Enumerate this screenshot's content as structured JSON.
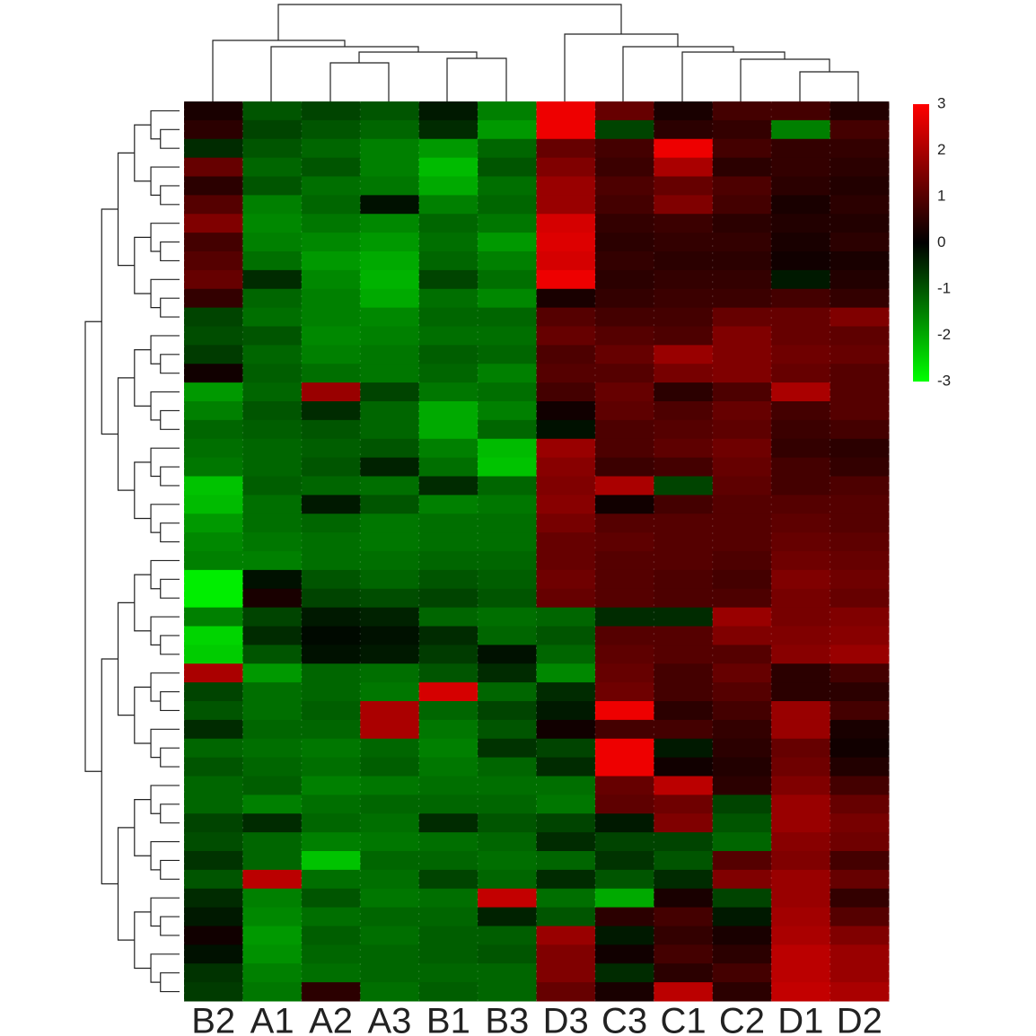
{
  "chart_data": {
    "type": "heatmap",
    "categories": [
      "B2",
      "A1",
      "A2",
      "A3",
      "B1",
      "B3",
      "D3",
      "C3",
      "C1",
      "C2",
      "D1",
      "D2"
    ],
    "zlim": [
      -3,
      3
    ],
    "colorbar_ticks": [
      3,
      2,
      1,
      0,
      -1,
      -2,
      -3
    ],
    "colors": {
      "low": "#00ff00",
      "mid": "#000000",
      "high": "#ff0000"
    },
    "z": [
      [
        0.3,
        -1,
        -0.8,
        -1,
        -0.3,
        -1.5,
        2.8,
        1.2,
        0.3,
        0.8,
        0.8,
        0.4
      ],
      [
        0.5,
        -0.8,
        -1,
        -1.2,
        -0.5,
        -1.8,
        2.8,
        -0.8,
        0.5,
        0.6,
        -1.5,
        0.8
      ],
      [
        -0.5,
        -1,
        -1.2,
        -1.5,
        -1.8,
        -1.2,
        1.2,
        0.8,
        2.8,
        0.8,
        0.6,
        0.6
      ],
      [
        1.2,
        -1.2,
        -1,
        -1.5,
        -2.2,
        -1,
        1.5,
        0.7,
        2,
        0.5,
        0.6,
        0.5
      ],
      [
        0.5,
        -1,
        -1.3,
        -1.4,
        -2,
        -1.3,
        1.8,
        0.9,
        1.2,
        0.9,
        0.5,
        0.4
      ],
      [
        1,
        -1.5,
        -1.2,
        -0.2,
        -1.5,
        -1.2,
        1.8,
        0.8,
        1.5,
        0.8,
        0.3,
        0.5
      ],
      [
        1.5,
        -1.6,
        -1.4,
        -1.6,
        -1.2,
        -1.4,
        2.5,
        0.6,
        0.7,
        0.5,
        0.4,
        0.4
      ],
      [
        0.8,
        -1.5,
        -1.6,
        -1.8,
        -1.3,
        -1.8,
        2.6,
        0.5,
        0.6,
        0.6,
        0.3,
        0.5
      ],
      [
        1,
        -1.3,
        -1.8,
        -2,
        -1.2,
        -1.5,
        2.5,
        0.6,
        0.5,
        0.5,
        0.2,
        0.3
      ],
      [
        1.2,
        -0.5,
        -1.6,
        -2.1,
        -0.8,
        -1.3,
        2.8,
        0.5,
        0.6,
        0.6,
        -0.3,
        0.4
      ],
      [
        0.6,
        -1.2,
        -1.5,
        -2,
        -1.3,
        -1.6,
        0.3,
        0.6,
        0.7,
        0.7,
        0.8,
        0.6
      ],
      [
        -0.8,
        -1.3,
        -1.5,
        -1.6,
        -1.2,
        -1.2,
        1,
        0.8,
        0.8,
        1.2,
        1.2,
        1.5
      ],
      [
        -0.9,
        -1,
        -1.6,
        -1.5,
        -1.3,
        -1.3,
        1.2,
        1,
        0.9,
        1.5,
        1.2,
        1.1
      ],
      [
        -0.7,
        -1.2,
        -1.5,
        -1.4,
        -1.1,
        -1.2,
        0.9,
        1.2,
        1.8,
        1.5,
        1.3,
        1.2
      ],
      [
        0.2,
        -1.1,
        -1.3,
        -1.4,
        -1.2,
        -1.5,
        1,
        1,
        1.4,
        1.5,
        1.2,
        1
      ],
      [
        -1.8,
        -1.2,
        1.8,
        -0.8,
        -1.4,
        -1.3,
        0.8,
        1.2,
        0.5,
        0.9,
        2,
        1
      ],
      [
        -1.5,
        -1,
        -0.5,
        -1.2,
        -2,
        -1.5,
        0.2,
        1.1,
        0.9,
        1.2,
        0.8,
        1
      ],
      [
        -1.2,
        -1.1,
        -1,
        -1.2,
        -2,
        -1.2,
        -0.2,
        0.9,
        1,
        1.1,
        0.7,
        0.8
      ],
      [
        -1.3,
        -1.2,
        -1.1,
        -1,
        -1.5,
        -2.2,
        1.8,
        0.9,
        1.1,
        1.3,
        0.6,
        0.5
      ],
      [
        -1.4,
        -1.2,
        -1,
        -0.4,
        -1.3,
        -2.3,
        1.6,
        0.7,
        0.8,
        1.2,
        0.8,
        0.6
      ],
      [
        -2.3,
        -1.1,
        -1.2,
        -1.3,
        -0.5,
        -1.2,
        1.5,
        2,
        -0.8,
        1.1,
        0.8,
        0.9
      ],
      [
        -2.2,
        -1.3,
        -0.3,
        -1,
        -1.5,
        -1.4,
        1.6,
        0.2,
        0.8,
        1,
        1,
        1
      ],
      [
        -1.8,
        -1.3,
        -1.2,
        -1.4,
        -1.3,
        -1.3,
        1.4,
        1,
        1,
        1,
        1.1,
        1
      ],
      [
        -1.6,
        -1.4,
        -1.3,
        -1.4,
        -1.3,
        -1.3,
        1.2,
        1.1,
        1,
        1,
        1.2,
        1.1
      ],
      [
        -1.5,
        -1.5,
        -1.3,
        -1.3,
        -1.2,
        -1.2,
        1.2,
        1,
        1,
        0.9,
        1.3,
        1.2
      ],
      [
        -2.8,
        -0.2,
        -1,
        -1.2,
        -1,
        -1.1,
        1.3,
        1,
        0.9,
        0.8,
        1.5,
        1.3
      ],
      [
        -2.8,
        0.3,
        -0.8,
        -0.9,
        -0.8,
        -1,
        1.2,
        1,
        0.9,
        0.9,
        1.4,
        1.2
      ],
      [
        -1.5,
        -0.8,
        -0.3,
        -0.4,
        -1.2,
        -1.3,
        -1.2,
        -0.5,
        -0.5,
        1.8,
        1.4,
        1.5
      ],
      [
        -2.5,
        -0.5,
        -0.1,
        -0.2,
        -0.5,
        -1.2,
        -1,
        1,
        1,
        1.5,
        1.5,
        1.6
      ],
      [
        -2.4,
        -1,
        -0.2,
        -0.3,
        -0.7,
        -0.2,
        -1.2,
        1.1,
        1,
        1,
        1.6,
        1.8
      ],
      [
        2,
        -1.8,
        -1.2,
        -1.3,
        -1,
        -0.5,
        -1.6,
        1.2,
        0.8,
        1.2,
        0.5,
        0.8
      ],
      [
        -0.8,
        -1.3,
        -1.2,
        -1.4,
        2.5,
        -1.2,
        -0.5,
        1.3,
        0.8,
        1,
        0.5,
        0.5
      ],
      [
        -1,
        -1.3,
        -1.1,
        2,
        -1.2,
        -0.8,
        -0.3,
        2.8,
        0.5,
        0.8,
        1.8,
        0.8
      ],
      [
        -0.5,
        -1.2,
        -1.2,
        2,
        -1.4,
        -1,
        0.2,
        0.8,
        0.8,
        0.6,
        1.8,
        0.3
      ],
      [
        -1.2,
        -1.3,
        -1.4,
        -1.2,
        -1.5,
        -0.6,
        -0.8,
        2.8,
        -0.3,
        0.5,
        1.2,
        0.2
      ],
      [
        -1,
        -1.2,
        -1.3,
        -1.1,
        -1.4,
        -1.2,
        -0.5,
        2.8,
        0.2,
        0.4,
        1.3,
        0.4
      ],
      [
        -1.2,
        -1.1,
        -1.5,
        -1.4,
        -1.3,
        -1.3,
        -1.3,
        1.2,
        2.2,
        0.5,
        1.5,
        0.8
      ],
      [
        -1.2,
        -1.5,
        -1.3,
        -1.2,
        -1.2,
        -1.2,
        -1.4,
        1.1,
        1.3,
        -0.8,
        1.8,
        1.2
      ],
      [
        -0.8,
        -0.5,
        -1.2,
        -1.3,
        -0.5,
        -1,
        -0.8,
        -0.3,
        1.5,
        -1,
        1.8,
        1.4
      ],
      [
        -0.9,
        -1.2,
        -1.5,
        -1.4,
        -1.3,
        -1.2,
        -0.5,
        -0.8,
        -0.8,
        -1.2,
        1.6,
        1.3
      ],
      [
        -0.6,
        -1.2,
        -2.3,
        -1.2,
        -1.2,
        -1.3,
        -1.2,
        -0.6,
        -1,
        1,
        1.5,
        0.8
      ],
      [
        -1,
        2.2,
        -1.3,
        -1.3,
        -0.8,
        -1.2,
        -0.5,
        -1,
        -0.5,
        1.5,
        1.8,
        1.2
      ],
      [
        -0.5,
        -1.5,
        -1,
        -1.4,
        -1.3,
        2.3,
        -1.3,
        -2,
        0.3,
        -0.8,
        1.8,
        0.6
      ],
      [
        -0.3,
        -1.6,
        -1.3,
        -1.2,
        -1.2,
        -0.4,
        -1,
        0.5,
        0.8,
        -0.3,
        1.9,
        1
      ],
      [
        0.2,
        -1.8,
        -1.1,
        -1.3,
        -1.1,
        -1.1,
        1.8,
        -0.3,
        0.6,
        0.3,
        2,
        1.5
      ],
      [
        -0.2,
        -1.7,
        -1.2,
        -1.2,
        -1.1,
        -1,
        1.5,
        0.2,
        0.8,
        0.5,
        2.2,
        1.8
      ],
      [
        -0.6,
        -1.5,
        -1.3,
        -1.2,
        -1.2,
        -1.2,
        1.5,
        -0.5,
        0.5,
        0.8,
        2.2,
        1.8
      ],
      [
        -0.7,
        -1.4,
        0.5,
        -1.3,
        -1.1,
        -1.2,
        1.2,
        0.3,
        2.2,
        0.5,
        2.3,
        2
      ]
    ]
  }
}
